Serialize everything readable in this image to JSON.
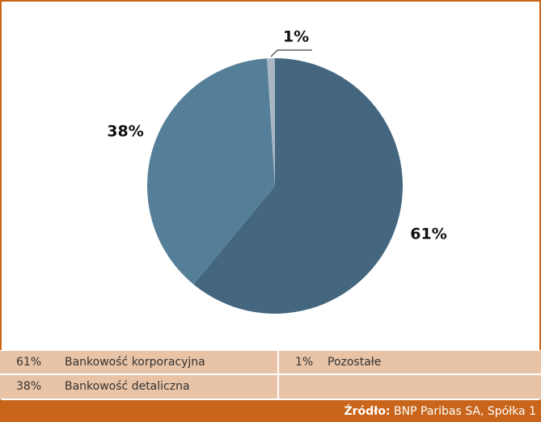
{
  "chart_data": {
    "type": "pie",
    "categories": [
      "Bankowość korporacyjna",
      "Bankowość detaliczna",
      "Pozostałe"
    ],
    "values": [
      61,
      38,
      1
    ],
    "value_labels": [
      "61%",
      "38%",
      "1%"
    ],
    "colors": [
      "#44677f",
      "#557f98",
      "#a9b7c4"
    ],
    "source_label": "Źródło:",
    "source": "BNP Paribas SA, Spółka 1"
  }
}
